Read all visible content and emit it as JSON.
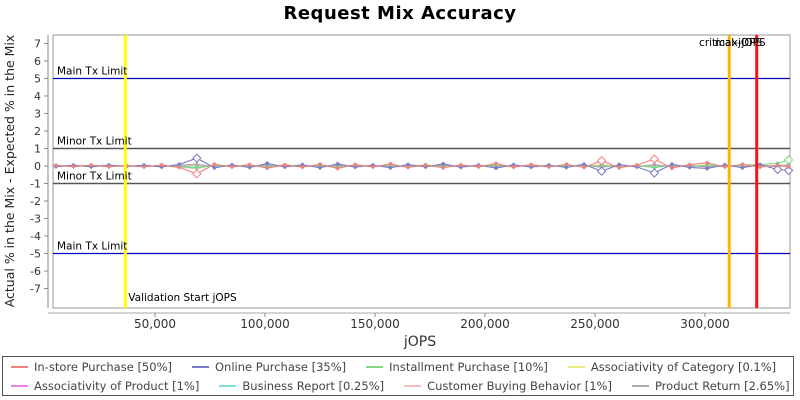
{
  "chart_data": {
    "type": "line",
    "title": "Request Mix Accuracy",
    "xlabel": "jOPS",
    "ylabel": "Actual % in the Mix - Expected % in the Mix",
    "xlim": [
      3600,
      338600
    ],
    "ylim": [
      -7.5,
      7.5
    ],
    "grid": true,
    "legend_position": "bottom",
    "x_ticks": {
      "values": [
        50000,
        100000,
        150000,
        200000,
        250000,
        300000
      ],
      "labels": [
        "50,000",
        "100,000",
        "150,000",
        "200,000",
        "250,000",
        "300,000"
      ]
    },
    "y_ticks": [
      7,
      6,
      5,
      4,
      3,
      2,
      1,
      0,
      -1,
      -2,
      -3,
      -4,
      -5,
      -6,
      -7
    ],
    "limit_lines": [
      {
        "label": "Main Tx Limit",
        "value": 5,
        "color": "#0000bb"
      },
      {
        "label": "Minor Tx Limit",
        "value": 1,
        "color": "#555555"
      },
      {
        "label": "Minor Tx Limit",
        "value": -1,
        "color": "#555555"
      },
      {
        "label": "Main Tx Limit",
        "value": -5,
        "color": "#0000bb"
      }
    ],
    "marker_lines": [
      {
        "label": "Validation Start jOPS",
        "value": 36500,
        "color": "#ffff00"
      },
      {
        "label": "critical-jOPS",
        "value": 311000,
        "color": "#ffb400"
      },
      {
        "label": "max-jOPS",
        "value": 323500,
        "color": "#ff1111"
      }
    ],
    "x": [
      5000,
      13000,
      21000,
      29000,
      37000,
      45000,
      53000,
      61000,
      69000,
      77000,
      85000,
      93000,
      101000,
      109000,
      117000,
      125000,
      133000,
      141000,
      149000,
      157000,
      165000,
      173000,
      181000,
      189000,
      197000,
      205000,
      213000,
      221000,
      229000,
      237000,
      245000,
      253000,
      261000,
      269000,
      277000,
      285000,
      293000,
      301000,
      309000,
      317000,
      325000,
      333000,
      338000
    ],
    "series": [
      {
        "label": "In-store Purchase [50%]",
        "color": "#f08080",
        "values": [
          0.04,
          -0.03,
          0.05,
          -0.04,
          0.02,
          -0.05,
          0.06,
          -0.08,
          -0.45,
          0.1,
          -0.05,
          0.08,
          -0.12,
          0.06,
          -0.06,
          0.1,
          -0.14,
          0.08,
          -0.05,
          0.12,
          -0.08,
          0.05,
          -0.1,
          0.06,
          -0.04,
          0.14,
          -0.06,
          0.08,
          -0.05,
          0.1,
          -0.08,
          0.3,
          -0.1,
          0.05,
          0.4,
          -0.12,
          0.08,
          0.18,
          -0.05,
          0.1,
          -0.06,
          0.05,
          -0.05
        ]
      },
      {
        "label": "Online Purchase [35%]",
        "color": "#7b7bc8",
        "values": [
          -0.03,
          0.04,
          -0.04,
          0.05,
          -0.02,
          0.04,
          -0.05,
          0.09,
          0.45,
          -0.1,
          0.06,
          -0.08,
          0.15,
          -0.05,
          0.07,
          -0.1,
          0.12,
          -0.06,
          0.05,
          -0.1,
          0.08,
          -0.05,
          0.12,
          -0.07,
          0.05,
          -0.12,
          0.07,
          -0.06,
          0.05,
          -0.08,
          0.1,
          -0.3,
          0.08,
          -0.05,
          -0.4,
          0.1,
          -0.08,
          -0.14,
          0.06,
          -0.1,
          0.08,
          -0.2,
          -0.25
        ]
      },
      {
        "label": "Installment Purchase [10%]",
        "color": "#7fd87f",
        "values": [
          0.02,
          -0.03,
          0.03,
          -0.02,
          0.03,
          -0.03,
          0.02,
          -0.04,
          -0.12,
          0.05,
          -0.03,
          0.04,
          -0.06,
          0.07,
          -0.04,
          0.05,
          -0.07,
          0.04,
          -0.03,
          0.05,
          -0.04,
          0.07,
          -0.05,
          0.03,
          -0.05,
          0.05,
          -0.04,
          0.05,
          -0.03,
          0.04,
          -0.05,
          0.05,
          -0.07,
          0.04,
          -0.09,
          0.05,
          -0.04,
          0.07,
          -0.03,
          0.05,
          0.08,
          0.15,
          0.35
        ]
      },
      {
        "label": "Associativity of Category [0.1%]",
        "color": "#ebeb7e",
        "values": [
          0.01,
          -0.01,
          0.02,
          -0.02,
          0.01,
          -0.01,
          0.02,
          -0.01,
          0.03,
          -0.02,
          0.01,
          -0.01,
          0.02,
          -0.02,
          0.01,
          -0.01,
          0.02,
          -0.01,
          0.01,
          -0.02,
          0.02,
          -0.01,
          0.01,
          -0.02,
          0.01,
          -0.01,
          0.02,
          -0.02,
          0.01,
          -0.01,
          0.02,
          -0.01,
          0.01,
          -0.02,
          0.02,
          -0.01,
          0.01,
          -0.02,
          0.01,
          -0.01,
          0.02,
          -0.01,
          0.01
        ]
      },
      {
        "label": "Associativity of Product [1%]",
        "color": "#ee82ee",
        "values": [
          -0.02,
          0.03,
          -0.03,
          0.04,
          -0.02,
          0.03,
          -0.04,
          0.03,
          0.08,
          -0.04,
          0.03,
          -0.03,
          0.05,
          -0.03,
          0.04,
          -0.04,
          0.03,
          -0.03,
          0.04,
          -0.04,
          0.03,
          -0.03,
          0.04,
          -0.03,
          0.03,
          -0.05,
          0.04,
          -0.03,
          0.03,
          -0.04,
          0.04,
          -0.06,
          0.03,
          -0.03,
          0.06,
          -0.04,
          0.03,
          -0.04,
          0.03,
          -0.03,
          0.04,
          -0.05,
          0.05
        ]
      },
      {
        "label": "Business Report [0.25%]",
        "color": "#7fdede",
        "values": [
          0.02,
          -0.02,
          0.03,
          -0.03,
          0.02,
          -0.02,
          0.03,
          -0.02,
          -0.06,
          0.03,
          -0.02,
          0.03,
          -0.04,
          0.03,
          -0.03,
          0.03,
          -0.04,
          0.02,
          -0.02,
          0.03,
          -0.03,
          0.03,
          -0.03,
          0.02,
          -0.03,
          0.03,
          -0.02,
          0.03,
          -0.02,
          0.03,
          -0.03,
          0.04,
          -0.04,
          0.02,
          -0.05,
          0.03,
          -0.03,
          0.03,
          -0.02,
          0.03,
          -0.03,
          0.04,
          0.06
        ]
      },
      {
        "label": "Customer Buying Behavior [1%]",
        "color": "#f5bfbf",
        "values": [
          0.04,
          -0.04,
          0.05,
          -0.05,
          0.03,
          -0.04,
          0.05,
          -0.06,
          -0.15,
          0.06,
          -0.04,
          0.05,
          -0.07,
          0.05,
          -0.05,
          0.06,
          -0.08,
          0.05,
          -0.04,
          0.06,
          -0.05,
          0.04,
          -0.06,
          0.05,
          -0.04,
          0.07,
          -0.05,
          0.05,
          -0.04,
          0.06,
          -0.05,
          0.08,
          -0.06,
          0.04,
          -0.1,
          0.06,
          -0.05,
          0.06,
          -0.04,
          0.06,
          -0.05,
          0.04,
          -0.06
        ]
      },
      {
        "label": "Product Return [2.65%]",
        "color": "#a9a9a9",
        "values": [
          -0.03,
          0.04,
          -0.04,
          0.04,
          -0.03,
          0.04,
          -0.05,
          0.05,
          0.1,
          -0.05,
          0.04,
          -0.04,
          0.06,
          -0.04,
          0.04,
          -0.05,
          0.06,
          -0.04,
          0.03,
          -0.05,
          0.04,
          -0.04,
          0.05,
          -0.04,
          0.04,
          -0.06,
          0.04,
          -0.04,
          0.04,
          -0.05,
          0.05,
          -0.07,
          0.05,
          -0.04,
          0.08,
          -0.05,
          0.04,
          -0.06,
          0.04,
          -0.04,
          0.05,
          -0.05,
          0.06
        ]
      }
    ]
  }
}
